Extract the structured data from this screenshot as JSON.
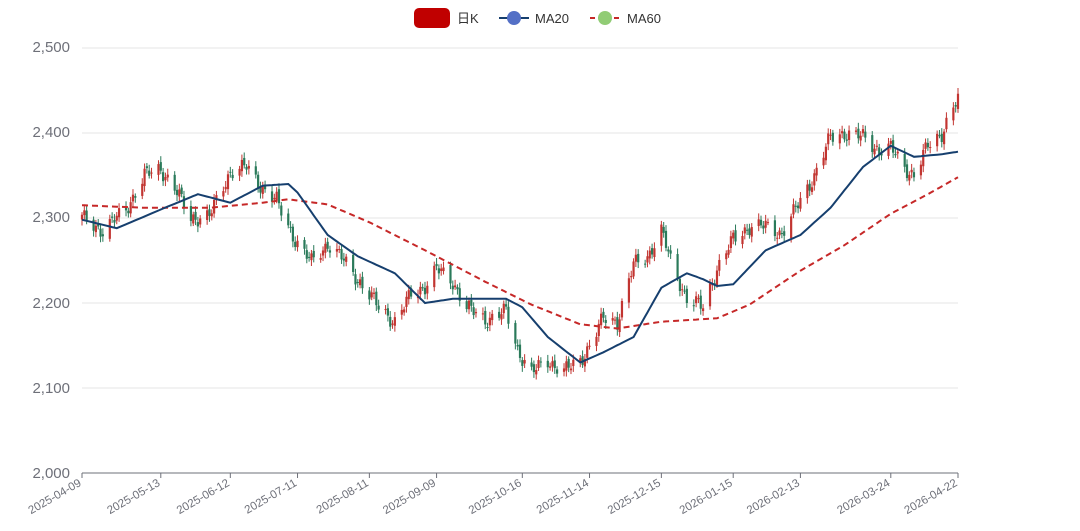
{
  "colors": {
    "up": "#c23531",
    "down": "#2a7a5a",
    "ma20": "#163f6e",
    "ma60": "#c62828",
    "grid": "#e6e6e6",
    "axis": "#6e7079",
    "legend_kline": "#c00000",
    "legend_ma20": "#5470c6",
    "legend_ma60": "#91cc75"
  },
  "chart_data": {
    "type": "candlestick",
    "legend": {
      "position": "top-center",
      "items": [
        "日K",
        "MA20",
        "MA60"
      ]
    },
    "y_axis": {
      "min": 2000,
      "max": 2500,
      "ticks": [
        "2,000",
        "2,100",
        "2,200",
        "2,300",
        "2,400",
        "2,500"
      ],
      "grid": true
    },
    "x_axis": {
      "tick_labels": [
        "2025-04-09",
        "2025-05-13",
        "2025-06-12",
        "2025-07-11",
        "2025-08-11",
        "2025-09-09",
        "2025-10-16",
        "2025-11-14",
        "2025-12-15",
        "2026-01-15",
        "2026-02-13",
        "2026-03-24",
        "2026-04-22"
      ],
      "rotate_deg": 30
    },
    "close_keypoints": [
      [
        "2025-04-09",
        2300
      ],
      [
        "2025-04-18",
        2285
      ],
      [
        "2025-04-28",
        2310
      ],
      [
        "2025-05-06",
        2350
      ],
      [
        "2025-05-13",
        2358
      ],
      [
        "2025-05-19",
        2335
      ],
      [
        "2025-05-26",
        2300
      ],
      [
        "2025-06-03",
        2302
      ],
      [
        "2025-06-12",
        2355
      ],
      [
        "2025-06-19",
        2360
      ],
      [
        "2025-06-26",
        2335
      ],
      [
        "2025-07-02",
        2320
      ],
      [
        "2025-07-07",
        2290
      ],
      [
        "2025-07-11",
        2270
      ],
      [
        "2025-07-17",
        2248
      ],
      [
        "2025-07-24",
        2270
      ],
      [
        "2025-07-31",
        2250
      ],
      [
        "2025-08-06",
        2228
      ],
      [
        "2025-08-11",
        2210
      ],
      [
        "2025-08-15",
        2195
      ],
      [
        "2025-08-22",
        2178
      ],
      [
        "2025-08-29",
        2210
      ],
      [
        "2025-09-04",
        2220
      ],
      [
        "2025-09-09",
        2240
      ],
      [
        "2025-09-16",
        2225
      ],
      [
        "2025-09-22",
        2195
      ],
      [
        "2025-09-30",
        2180
      ],
      [
        "2025-10-09",
        2190
      ],
      [
        "2025-10-14",
        2145
      ],
      [
        "2025-10-20",
        2118
      ],
      [
        "2025-10-27",
        2132
      ],
      [
        "2025-11-03",
        2120
      ],
      [
        "2025-11-10",
        2132
      ],
      [
        "2025-11-14",
        2150
      ],
      [
        "2025-11-20",
        2182
      ],
      [
        "2025-11-26",
        2178
      ],
      [
        "2025-12-03",
        2245
      ],
      [
        "2025-12-09",
        2255
      ],
      [
        "2025-12-15",
        2285
      ],
      [
        "2025-12-19",
        2250
      ],
      [
        "2025-12-26",
        2205
      ],
      [
        "2026-01-02",
        2195
      ],
      [
        "2026-01-08",
        2240
      ],
      [
        "2026-01-15",
        2275
      ],
      [
        "2026-01-22",
        2290
      ],
      [
        "2026-01-29",
        2290
      ],
      [
        "2026-02-05",
        2282
      ],
      [
        "2026-02-13",
        2320
      ],
      [
        "2026-02-19",
        2350
      ],
      [
        "2026-02-26",
        2395
      ],
      [
        "2026-03-04",
        2400
      ],
      [
        "2026-03-12",
        2395
      ],
      [
        "2026-03-19",
        2380
      ],
      [
        "2026-03-24",
        2382
      ],
      [
        "2026-03-30",
        2360
      ],
      [
        "2026-04-03",
        2350
      ],
      [
        "2026-04-09",
        2385
      ],
      [
        "2026-04-15",
        2400
      ],
      [
        "2026-04-22",
        2440
      ]
    ],
    "ma20_keypoints": [
      [
        "2025-04-09",
        2298
      ],
      [
        "2025-04-24",
        2288
      ],
      [
        "2025-05-13",
        2310
      ],
      [
        "2025-05-29",
        2328
      ],
      [
        "2025-06-12",
        2318
      ],
      [
        "2025-06-26",
        2338
      ],
      [
        "2025-07-07",
        2340
      ],
      [
        "2025-07-11",
        2330
      ],
      [
        "2025-07-24",
        2280
      ],
      [
        "2025-08-06",
        2255
      ],
      [
        "2025-08-22",
        2235
      ],
      [
        "2025-09-04",
        2200
      ],
      [
        "2025-09-16",
        2205
      ],
      [
        "2025-10-09",
        2205
      ],
      [
        "2025-10-16",
        2195
      ],
      [
        "2025-10-27",
        2160
      ],
      [
        "2025-11-10",
        2130
      ],
      [
        "2025-11-20",
        2142
      ],
      [
        "2025-12-03",
        2160
      ],
      [
        "2025-12-15",
        2218
      ],
      [
        "2025-12-26",
        2235
      ],
      [
        "2026-01-02",
        2228
      ],
      [
        "2026-01-08",
        2220
      ],
      [
        "2026-01-15",
        2222
      ],
      [
        "2026-01-29",
        2262
      ],
      [
        "2026-02-13",
        2280
      ],
      [
        "2026-02-26",
        2312
      ],
      [
        "2026-03-12",
        2360
      ],
      [
        "2026-03-24",
        2385
      ],
      [
        "2026-04-03",
        2372
      ],
      [
        "2026-04-15",
        2375
      ],
      [
        "2026-04-22",
        2378
      ]
    ],
    "ma60_keypoints": [
      [
        "2025-04-09",
        2315
      ],
      [
        "2025-05-06",
        2312
      ],
      [
        "2025-06-03",
        2312
      ],
      [
        "2025-06-26",
        2318
      ],
      [
        "2025-07-07",
        2322
      ],
      [
        "2025-07-24",
        2316
      ],
      [
        "2025-08-11",
        2295
      ],
      [
        "2025-09-04",
        2262
      ],
      [
        "2025-09-30",
        2225
      ],
      [
        "2025-10-20",
        2198
      ],
      [
        "2025-11-10",
        2175
      ],
      [
        "2025-11-26",
        2170
      ],
      [
        "2025-12-15",
        2178
      ],
      [
        "2026-01-08",
        2182
      ],
      [
        "2026-01-22",
        2198
      ],
      [
        "2026-02-13",
        2238
      ],
      [
        "2026-03-04",
        2268
      ],
      [
        "2026-03-24",
        2305
      ],
      [
        "2026-04-09",
        2328
      ],
      [
        "2026-04-22",
        2348
      ]
    ]
  }
}
